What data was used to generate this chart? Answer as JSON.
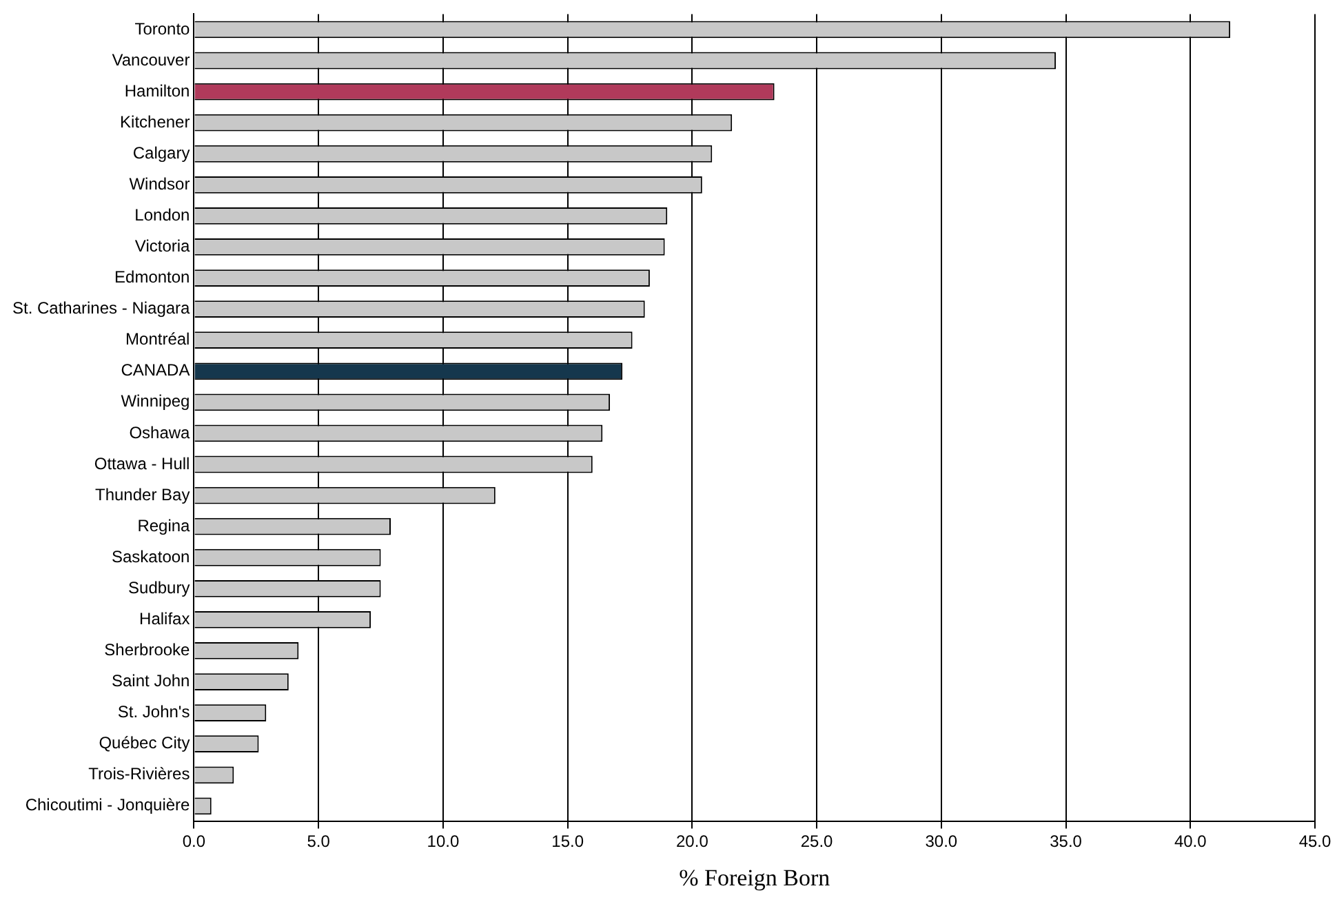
{
  "chart_data": {
    "type": "bar",
    "orientation": "horizontal",
    "xlabel": "% Foreign Born",
    "categories": [
      "Toronto",
      "Vancouver",
      "Hamilton",
      "Kitchener",
      "Calgary",
      "Windsor",
      "London",
      "Victoria",
      "Edmonton",
      "St. Catharines - Niagara",
      "Montréal",
      "CANADA",
      "Winnipeg",
      "Oshawa",
      "Ottawa - Hull",
      "Thunder Bay",
      "Regina",
      "Saskatoon",
      "Sudbury",
      "Halifax",
      "Sherbrooke",
      "Saint John",
      "St. John's",
      "Québec City",
      "Trois-Rivières",
      "Chicoutimi - Jonquière"
    ],
    "values": [
      41.6,
      34.6,
      23.3,
      21.6,
      20.8,
      20.4,
      19.0,
      18.9,
      18.3,
      18.1,
      17.6,
      17.2,
      16.7,
      16.4,
      16.0,
      12.1,
      7.9,
      7.5,
      7.5,
      7.1,
      4.2,
      3.8,
      2.9,
      2.6,
      1.6,
      0.7
    ],
    "colors": [
      "#c8c8c8",
      "#c8c8c8",
      "#b03a5b",
      "#c8c8c8",
      "#c8c8c8",
      "#c8c8c8",
      "#c8c8c8",
      "#c8c8c8",
      "#c8c8c8",
      "#c8c8c8",
      "#c8c8c8",
      "#15374d",
      "#c8c8c8",
      "#c8c8c8",
      "#c8c8c8",
      "#c8c8c8",
      "#c8c8c8",
      "#c8c8c8",
      "#c8c8c8",
      "#c8c8c8",
      "#c8c8c8",
      "#c8c8c8",
      "#c8c8c8",
      "#c8c8c8",
      "#c8c8c8",
      "#c8c8c8"
    ],
    "xlim": [
      0,
      45
    ],
    "xticks": [
      {
        "value": 0,
        "label": "0.0"
      },
      {
        "value": 5,
        "label": "5.0"
      },
      {
        "value": 10,
        "label": "10.0"
      },
      {
        "value": 15,
        "label": "15.0"
      },
      {
        "value": 20,
        "label": "20.0"
      },
      {
        "value": 25,
        "label": "25.0"
      },
      {
        "value": 30,
        "label": "30.0"
      },
      {
        "value": 35,
        "label": "35.0"
      },
      {
        "value": 40,
        "label": "40.0"
      },
      {
        "value": 45,
        "label": "45.0"
      }
    ],
    "grid": "x",
    "legend": false
  }
}
